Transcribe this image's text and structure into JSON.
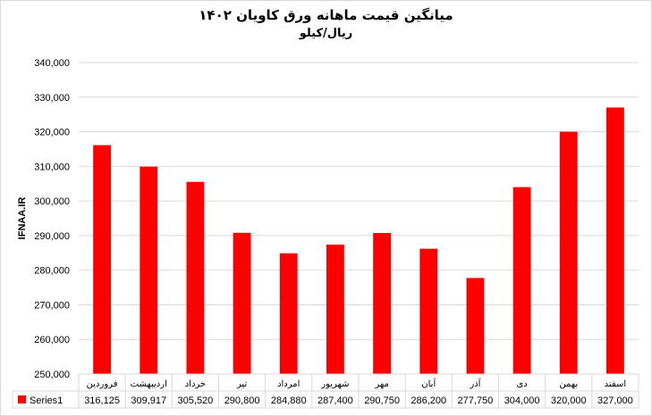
{
  "chart_data": {
    "type": "bar",
    "title": "میانگین قیمت ماهانه ورق کاویان ۱۴۰۲",
    "subtitle": "ریال/کیلو",
    "ylabel": "IFNAA.IR",
    "categories": [
      "فروردین",
      "اردیبهشت",
      "خرداد",
      "تیر",
      "امرداد",
      "شهریور",
      "مهر",
      "آبان",
      "آذر",
      "دی",
      "بهمن",
      "اسفند"
    ],
    "series": [
      {
        "name": "Series1",
        "values": [
          316125,
          309917,
          305520,
          290800,
          284880,
          287400,
          290750,
          286200,
          277750,
          304000,
          320000,
          327000
        ],
        "labels": [
          "316,125",
          "309,917",
          "305,520",
          "290,800",
          "284,880",
          "287,400",
          "290,750",
          "286,200",
          "277,750",
          "304,000",
          "320,000",
          "327,000"
        ]
      }
    ],
    "ylim": [
      250000,
      340000
    ],
    "yticks": [
      250000,
      260000,
      270000,
      280000,
      290000,
      300000,
      310000,
      320000,
      330000,
      340000
    ],
    "ytick_labels": [
      "250,000",
      "260,000",
      "270,000",
      "280,000",
      "290,000",
      "300,000",
      "310,000",
      "320,000",
      "330,000",
      "340,000"
    ],
    "grid": true,
    "data_table": true,
    "colors": {
      "bar": "#ff0000",
      "grid": "#d9d9d9"
    }
  }
}
